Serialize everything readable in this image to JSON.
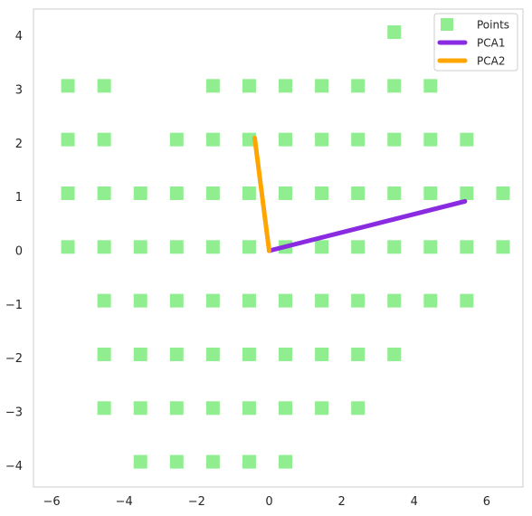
{
  "chart_data": {
    "type": "scatter",
    "title": "",
    "xlabel": "",
    "ylabel": "",
    "xlim": [
      -6.5,
      7.0
    ],
    "ylim": [
      -4.4,
      4.5
    ],
    "xticks": [
      -6,
      -4,
      -2,
      0,
      2,
      4,
      6
    ],
    "yticks": [
      4,
      3,
      2,
      1,
      0,
      -1,
      -2,
      -3,
      -4
    ],
    "xtick_labels": [
      "−6",
      "−4",
      "−2",
      "0",
      "2",
      "4",
      "6"
    ],
    "ytick_labels": [
      "4",
      "3",
      "2",
      "1",
      "0",
      "−1",
      "−2",
      "−3",
      "−4"
    ],
    "grid": false,
    "legend_position": "top-right",
    "series": [
      {
        "name": "Points",
        "kind": "scatter",
        "marker": "square",
        "color": "#90ee90",
        "points": [
          [
            3.45,
            4.07
          ],
          [
            -5.55,
            3.07
          ],
          [
            -4.55,
            3.07
          ],
          [
            -1.55,
            3.07
          ],
          [
            -0.55,
            3.07
          ],
          [
            0.45,
            3.07
          ],
          [
            1.45,
            3.07
          ],
          [
            2.45,
            3.07
          ],
          [
            3.45,
            3.07
          ],
          [
            4.45,
            3.07
          ],
          [
            -5.55,
            2.07
          ],
          [
            -4.55,
            2.07
          ],
          [
            -2.55,
            2.07
          ],
          [
            -1.55,
            2.07
          ],
          [
            -0.55,
            2.07
          ],
          [
            0.45,
            2.07
          ],
          [
            1.45,
            2.07
          ],
          [
            2.45,
            2.07
          ],
          [
            3.45,
            2.07
          ],
          [
            4.45,
            2.07
          ],
          [
            5.45,
            2.07
          ],
          [
            -5.55,
            1.07
          ],
          [
            -4.55,
            1.07
          ],
          [
            -3.55,
            1.07
          ],
          [
            -2.55,
            1.07
          ],
          [
            -1.55,
            1.07
          ],
          [
            -0.55,
            1.07
          ],
          [
            0.45,
            1.07
          ],
          [
            1.45,
            1.07
          ],
          [
            2.45,
            1.07
          ],
          [
            3.45,
            1.07
          ],
          [
            4.45,
            1.07
          ],
          [
            5.45,
            1.07
          ],
          [
            6.45,
            1.07
          ],
          [
            -5.55,
            0.07
          ],
          [
            -4.55,
            0.07
          ],
          [
            -3.55,
            0.07
          ],
          [
            -2.55,
            0.07
          ],
          [
            -1.55,
            0.07
          ],
          [
            -0.55,
            0.07
          ],
          [
            0.45,
            0.07
          ],
          [
            1.45,
            0.07
          ],
          [
            2.45,
            0.07
          ],
          [
            3.45,
            0.07
          ],
          [
            4.45,
            0.07
          ],
          [
            5.45,
            0.07
          ],
          [
            6.45,
            0.07
          ],
          [
            -4.55,
            -0.93
          ],
          [
            -3.55,
            -0.93
          ],
          [
            -2.55,
            -0.93
          ],
          [
            -1.55,
            -0.93
          ],
          [
            -0.55,
            -0.93
          ],
          [
            0.45,
            -0.93
          ],
          [
            1.45,
            -0.93
          ],
          [
            2.45,
            -0.93
          ],
          [
            3.45,
            -0.93
          ],
          [
            4.45,
            -0.93
          ],
          [
            5.45,
            -0.93
          ],
          [
            -4.55,
            -1.93
          ],
          [
            -3.55,
            -1.93
          ],
          [
            -2.55,
            -1.93
          ],
          [
            -1.55,
            -1.93
          ],
          [
            -0.55,
            -1.93
          ],
          [
            0.45,
            -1.93
          ],
          [
            1.45,
            -1.93
          ],
          [
            2.45,
            -1.93
          ],
          [
            3.45,
            -1.93
          ],
          [
            -4.55,
            -2.93
          ],
          [
            -3.55,
            -2.93
          ],
          [
            -2.55,
            -2.93
          ],
          [
            -1.55,
            -2.93
          ],
          [
            -0.55,
            -2.93
          ],
          [
            0.45,
            -2.93
          ],
          [
            1.45,
            -2.93
          ],
          [
            2.45,
            -2.93
          ],
          [
            -3.55,
            -3.93
          ],
          [
            -2.55,
            -3.93
          ],
          [
            -1.55,
            -3.93
          ],
          [
            -0.55,
            -3.93
          ],
          [
            0.45,
            -3.93
          ]
        ]
      },
      {
        "name": "PCA1",
        "kind": "line",
        "color": "#8a2be2",
        "points": [
          [
            0,
            0
          ],
          [
            5.4,
            0.92
          ]
        ]
      },
      {
        "name": "PCA2",
        "kind": "line",
        "color": "#ffa500",
        "points": [
          [
            0,
            0
          ],
          [
            -0.4,
            2.1
          ]
        ]
      }
    ]
  }
}
